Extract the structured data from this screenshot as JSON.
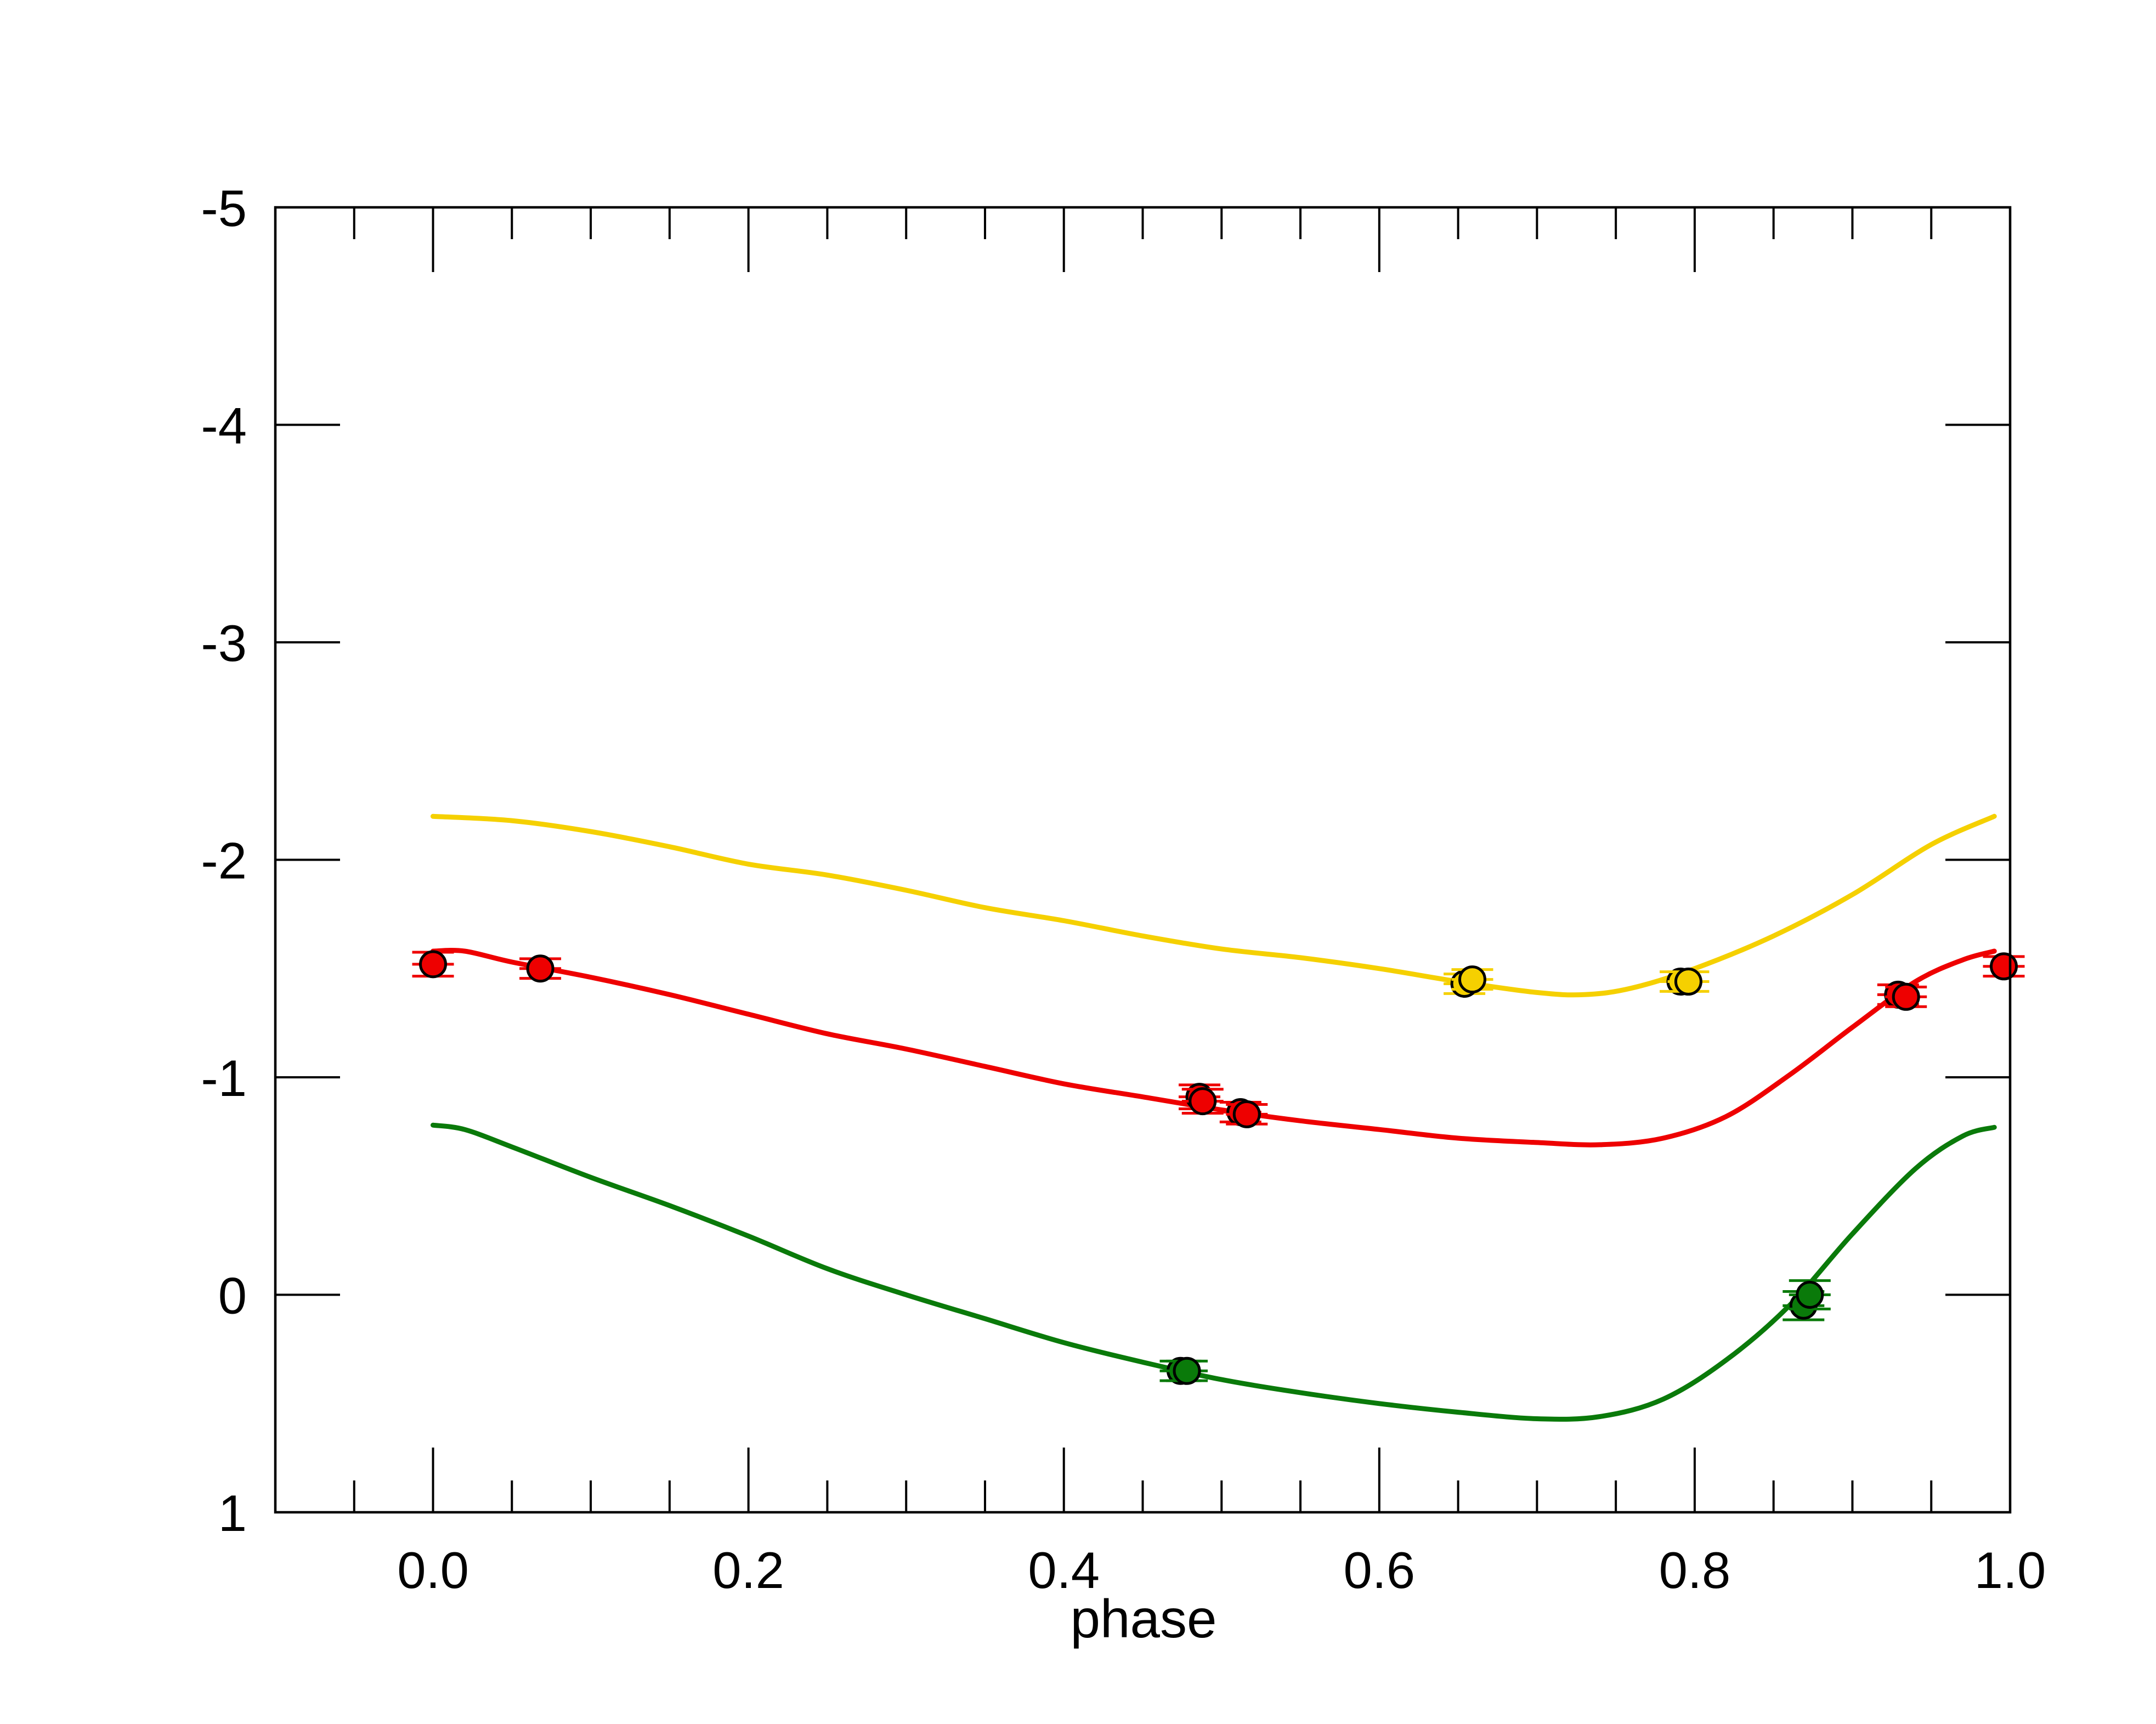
{
  "chart_data": {
    "type": "scatter",
    "title": "",
    "xlabel": "phase",
    "ylabel": "",
    "xlim": [
      -0.1,
      1.0
    ],
    "ylim": [
      1,
      -5
    ],
    "y_inverted": true,
    "grid": false,
    "x_ticks": [
      "0.0",
      "0.2",
      "0.4",
      "0.6",
      "0.8",
      "1.0"
    ],
    "x_tick_values": [
      0.0,
      0.2,
      0.4,
      0.6,
      0.8,
      1.0
    ],
    "y_ticks": [
      "-5",
      "-4",
      "-3",
      "-2",
      "-1",
      "0",
      "1"
    ],
    "y_tick_values": [
      -5,
      -4,
      -3,
      -2,
      -1,
      0,
      1
    ],
    "series": [
      {
        "color": "#f5d000",
        "curve": [
          [
            0.0,
            -2.2
          ],
          [
            0.05,
            -2.18
          ],
          [
            0.1,
            -2.13
          ],
          [
            0.15,
            -2.06
          ],
          [
            0.2,
            -1.98
          ],
          [
            0.25,
            -1.93
          ],
          [
            0.3,
            -1.86
          ],
          [
            0.35,
            -1.78
          ],
          [
            0.4,
            -1.72
          ],
          [
            0.45,
            -1.65
          ],
          [
            0.5,
            -1.59
          ],
          [
            0.55,
            -1.55
          ],
          [
            0.6,
            -1.5
          ],
          [
            0.65,
            -1.44
          ],
          [
            0.7,
            -1.39
          ],
          [
            0.73,
            -1.38
          ],
          [
            0.76,
            -1.41
          ],
          [
            0.8,
            -1.5
          ],
          [
            0.85,
            -1.65
          ],
          [
            0.9,
            -1.84
          ],
          [
            0.95,
            -2.07
          ],
          [
            0.99,
            -2.2
          ]
        ],
        "points": [
          {
            "x": 0.654,
            "y": -1.43,
            "err": 0.03
          },
          {
            "x": 0.659,
            "y": -1.45,
            "err": 0.03
          },
          {
            "x": 0.791,
            "y": -1.44,
            "err": 0.03
          },
          {
            "x": 0.796,
            "y": -1.44,
            "err": 0.03
          }
        ]
      },
      {
        "color": "#ee0000",
        "curve": [
          [
            0.0,
            -1.58
          ],
          [
            0.02,
            -1.58
          ],
          [
            0.05,
            -1.53
          ],
          [
            0.1,
            -1.46
          ],
          [
            0.15,
            -1.38
          ],
          [
            0.2,
            -1.29
          ],
          [
            0.25,
            -1.2
          ],
          [
            0.3,
            -1.13
          ],
          [
            0.35,
            -1.05
          ],
          [
            0.4,
            -0.97
          ],
          [
            0.45,
            -0.91
          ],
          [
            0.5,
            -0.85
          ],
          [
            0.55,
            -0.8
          ],
          [
            0.6,
            -0.76
          ],
          [
            0.65,
            -0.72
          ],
          [
            0.7,
            -0.7
          ],
          [
            0.74,
            -0.69
          ],
          [
            0.78,
            -0.72
          ],
          [
            0.82,
            -0.82
          ],
          [
            0.86,
            -1.01
          ],
          [
            0.9,
            -1.23
          ],
          [
            0.94,
            -1.44
          ],
          [
            0.97,
            -1.54
          ],
          [
            0.99,
            -1.58
          ]
        ],
        "points": [
          {
            "x": 0.0,
            "y": -1.52,
            "err": 0.04
          },
          {
            "x": 0.068,
            "y": -1.5,
            "err": 0.03
          },
          {
            "x": 0.486,
            "y": -0.91,
            "err": 0.04
          },
          {
            "x": 0.488,
            "y": -0.89,
            "err": 0.04
          },
          {
            "x": 0.512,
            "y": -0.84,
            "err": 0.03
          },
          {
            "x": 0.516,
            "y": -0.83,
            "err": 0.03
          },
          {
            "x": 0.929,
            "y": -1.38,
            "err": 0.03
          },
          {
            "x": 0.934,
            "y": -1.37,
            "err": 0.03
          },
          {
            "x": 0.996,
            "y": -1.51,
            "err": 0.03
          }
        ]
      },
      {
        "color": "#0a7a0a",
        "curve": [
          [
            0.0,
            -0.78
          ],
          [
            0.02,
            -0.76
          ],
          [
            0.05,
            -0.68
          ],
          [
            0.1,
            -0.54
          ],
          [
            0.15,
            -0.41
          ],
          [
            0.2,
            -0.27
          ],
          [
            0.25,
            -0.12
          ],
          [
            0.3,
            0.0
          ],
          [
            0.35,
            0.11
          ],
          [
            0.4,
            0.22
          ],
          [
            0.45,
            0.31
          ],
          [
            0.5,
            0.39
          ],
          [
            0.55,
            0.45
          ],
          [
            0.6,
            0.5
          ],
          [
            0.65,
            0.54
          ],
          [
            0.7,
            0.57
          ],
          [
            0.74,
            0.56
          ],
          [
            0.78,
            0.48
          ],
          [
            0.82,
            0.3
          ],
          [
            0.86,
            0.05
          ],
          [
            0.9,
            -0.28
          ],
          [
            0.94,
            -0.58
          ],
          [
            0.97,
            -0.73
          ],
          [
            0.99,
            -0.77
          ]
        ],
        "points": [
          {
            "x": 0.474,
            "y": 0.35,
            "err": 0.03
          },
          {
            "x": 0.478,
            "y": 0.35,
            "err": 0.03
          },
          {
            "x": 0.869,
            "y": 0.05,
            "err": 0.05
          },
          {
            "x": 0.873,
            "y": 0.0,
            "err": 0.05
          }
        ]
      }
    ]
  }
}
